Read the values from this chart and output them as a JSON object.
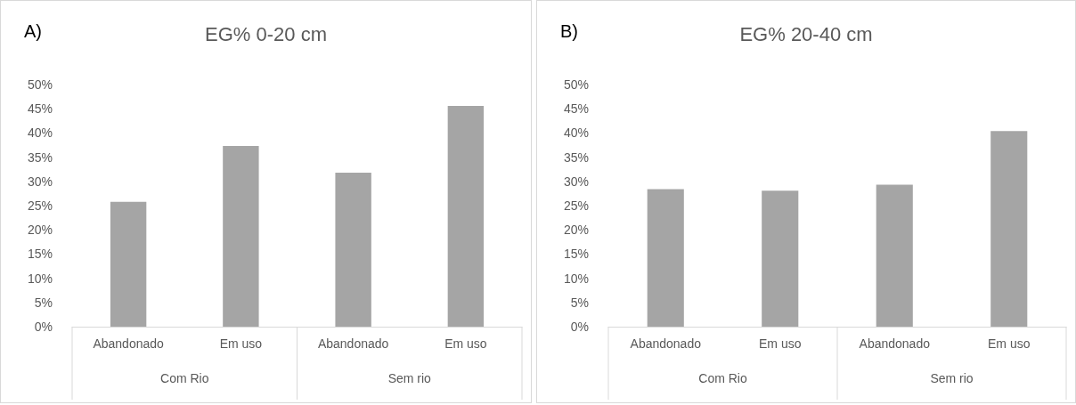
{
  "chart_data": [
    {
      "type": "bar",
      "title": "EG% 0-20 cm",
      "categories": [
        "Abandonado",
        "Em uso",
        "Abandonado",
        "Em uso"
      ],
      "values": [
        25.8,
        37.3,
        31.8,
        45.6
      ],
      "color": "#a5a5a5",
      "ylim": [
        0,
        50
      ],
      "yticks": [
        {
          "value": 0,
          "label": "0%"
        },
        {
          "value": 5,
          "label": "5%"
        },
        {
          "value": 10,
          "label": "10%"
        },
        {
          "value": 15,
          "label": "15%"
        },
        {
          "value": 20,
          "label": "20%"
        },
        {
          "value": 25,
          "label": "25%"
        },
        {
          "value": 30,
          "label": "30%"
        },
        {
          "value": 35,
          "label": "35%"
        },
        {
          "value": 40,
          "label": "40%"
        },
        {
          "value": 45,
          "label": "45%"
        },
        {
          "value": 50,
          "label": "50%"
        }
      ],
      "annotations": [
        "A)",
        "Com Rio",
        "Sem rio"
      ]
    },
    {
      "type": "bar",
      "title": "EG% 20-40 cm",
      "categories": [
        "Abandonado",
        "Em uso",
        "Abandonado",
        "Em uso"
      ],
      "values": [
        28.4,
        28.1,
        29.3,
        40.4
      ],
      "color": "#a5a5a5",
      "ylim": [
        0,
        50
      ],
      "yticks": [
        {
          "value": 0,
          "label": "0%"
        },
        {
          "value": 5,
          "label": "5%"
        },
        {
          "value": 10,
          "label": "10%"
        },
        {
          "value": 15,
          "label": "15%"
        },
        {
          "value": 20,
          "label": "20%"
        },
        {
          "value": 25,
          "label": "25%"
        },
        {
          "value": 30,
          "label": "30%"
        },
        {
          "value": 35,
          "label": "35%"
        },
        {
          "value": 40,
          "label": "40%"
        },
        {
          "value": 45,
          "label": "45%"
        },
        {
          "value": 50,
          "label": "50%"
        }
      ],
      "annotations": [
        "B)",
        "Com Rio",
        "Sem rio"
      ]
    }
  ]
}
